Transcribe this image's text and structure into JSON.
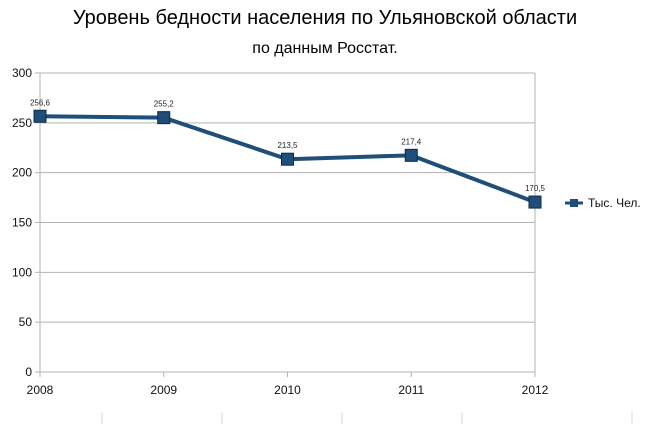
{
  "chart_data": {
    "type": "line",
    "title": "Уровень бедности населения по Ульяновской области",
    "subtitle": "по данным Росстат.",
    "x": [
      "2008",
      "2009",
      "2010",
      "2011",
      "2012"
    ],
    "series": [
      {
        "name": "Тыс. Чел.",
        "values": [
          256.6,
          255.2,
          213.5,
          217.4,
          170.5
        ],
        "labels": [
          "256,6",
          "255,2",
          "213,5",
          "217,4",
          "170,5"
        ],
        "color": "#1f4e79"
      }
    ],
    "ylim": [
      0,
      300
    ],
    "yticks": [
      0,
      50,
      100,
      150,
      200,
      250,
      300
    ],
    "xlabel": "",
    "ylabel": "",
    "grid": "horizontal",
    "legend": "right"
  }
}
